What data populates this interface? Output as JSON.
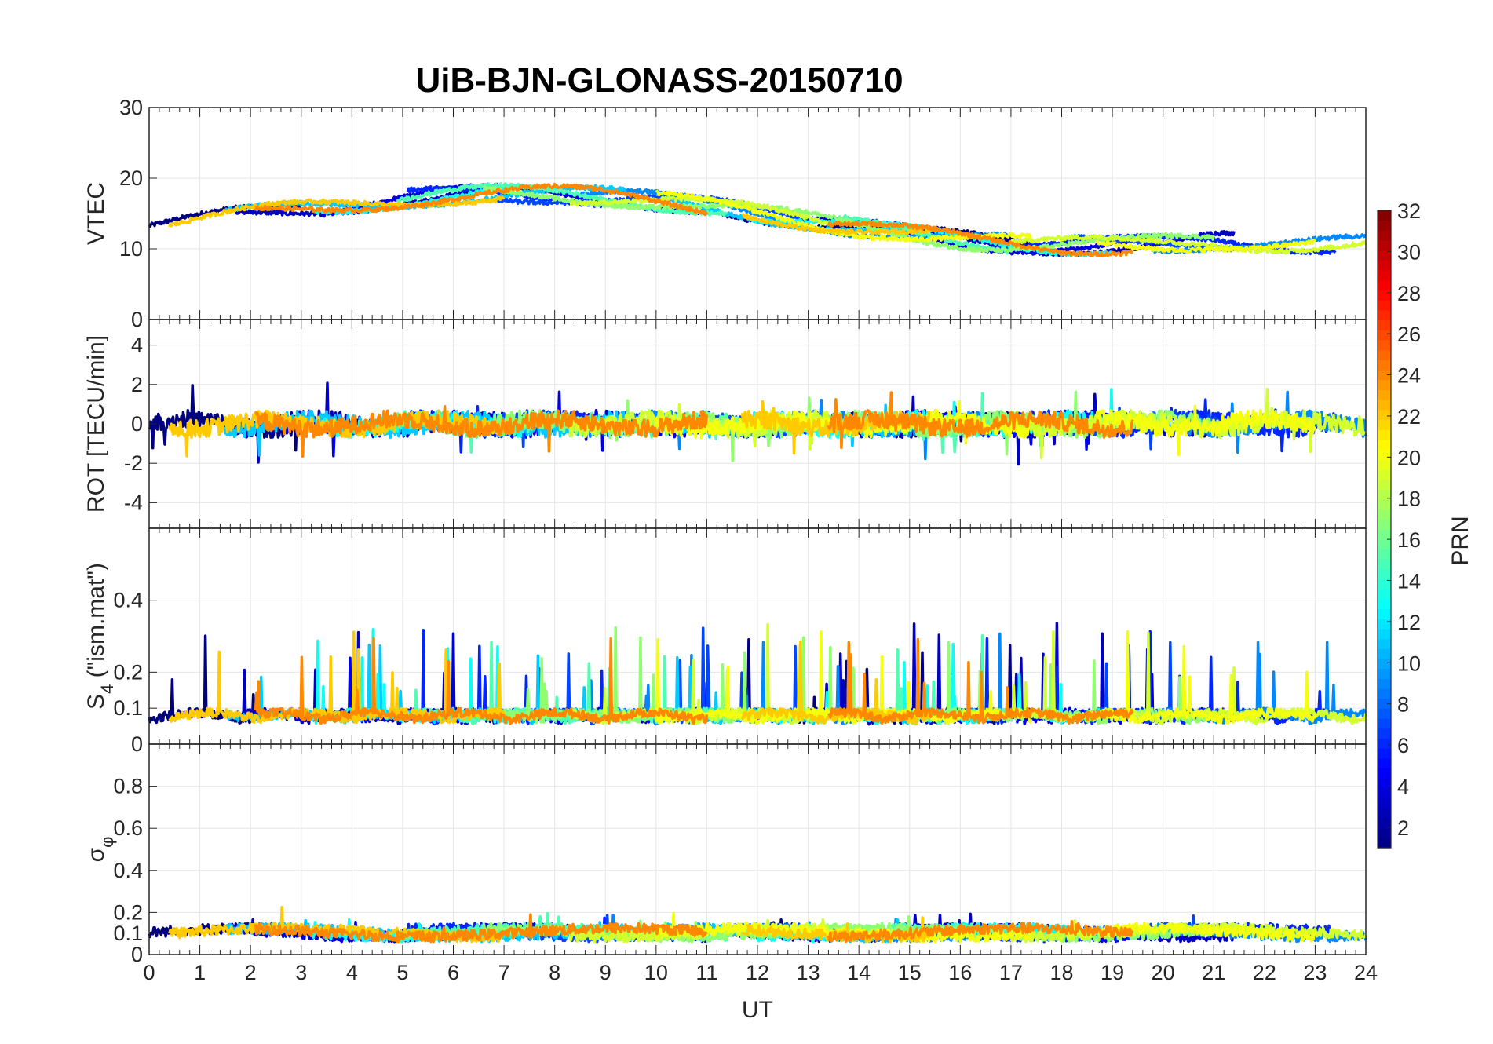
{
  "chart_data": {
    "type": "line",
    "title": "UiB-BJN-GLONASS-20150710",
    "xlabel": "UT",
    "xlim": [
      0,
      24
    ],
    "x_ticks": [
      "0",
      "1",
      "2",
      "3",
      "4",
      "5",
      "6",
      "7",
      "8",
      "9",
      "10",
      "11",
      "12",
      "13",
      "14",
      "15",
      "16",
      "17",
      "18",
      "19",
      "20",
      "21",
      "22",
      "23",
      "24"
    ],
    "grid": true,
    "colorbar": {
      "label": "PRN",
      "colormap": "jet",
      "range": [
        1,
        32
      ],
      "ticks": [
        "2",
        "4",
        "6",
        "8",
        "10",
        "12",
        "14",
        "16",
        "18",
        "20",
        "22",
        "24",
        "26",
        "28",
        "30",
        "32"
      ]
    },
    "panels": [
      {
        "ylabel": "VTEC",
        "ylim": [
          0,
          30
        ],
        "y_ticks": [
          "0",
          "10",
          "20",
          "30"
        ],
        "typical_range": [
          9,
          21
        ]
      },
      {
        "ylabel": "ROT [TECU/min]",
        "ylim": [
          -5.3,
          5.3
        ],
        "y_ticks": [
          "-4",
          "-2",
          "0",
          "2",
          "4"
        ],
        "typical_range": [
          -2.5,
          2.5
        ]
      },
      {
        "ylabel_main": "S",
        "ylabel_sub": "4",
        "ylabel_rest": " (\"ism.mat\")",
        "ylim": [
          0,
          0.6
        ],
        "y_ticks": [
          "0",
          "0.1",
          "0.2",
          "0.4"
        ],
        "typical_range": [
          0.04,
          0.31
        ]
      },
      {
        "ylabel_main": "σ",
        "ylabel_sub": "φ",
        "ylim": [
          0,
          1
        ],
        "y_ticks": [
          "0",
          "0.1",
          "0.2",
          "0.4",
          "0.6",
          "0.8"
        ],
        "typical_range": [
          0.05,
          0.27
        ]
      }
    ],
    "series_prn": [
      1,
      3,
      4,
      6,
      7,
      9,
      11,
      13,
      15,
      17,
      19,
      20,
      22,
      24
    ],
    "colors": {
      "grid": "#e6e6e6",
      "axis": "#262626"
    }
  }
}
